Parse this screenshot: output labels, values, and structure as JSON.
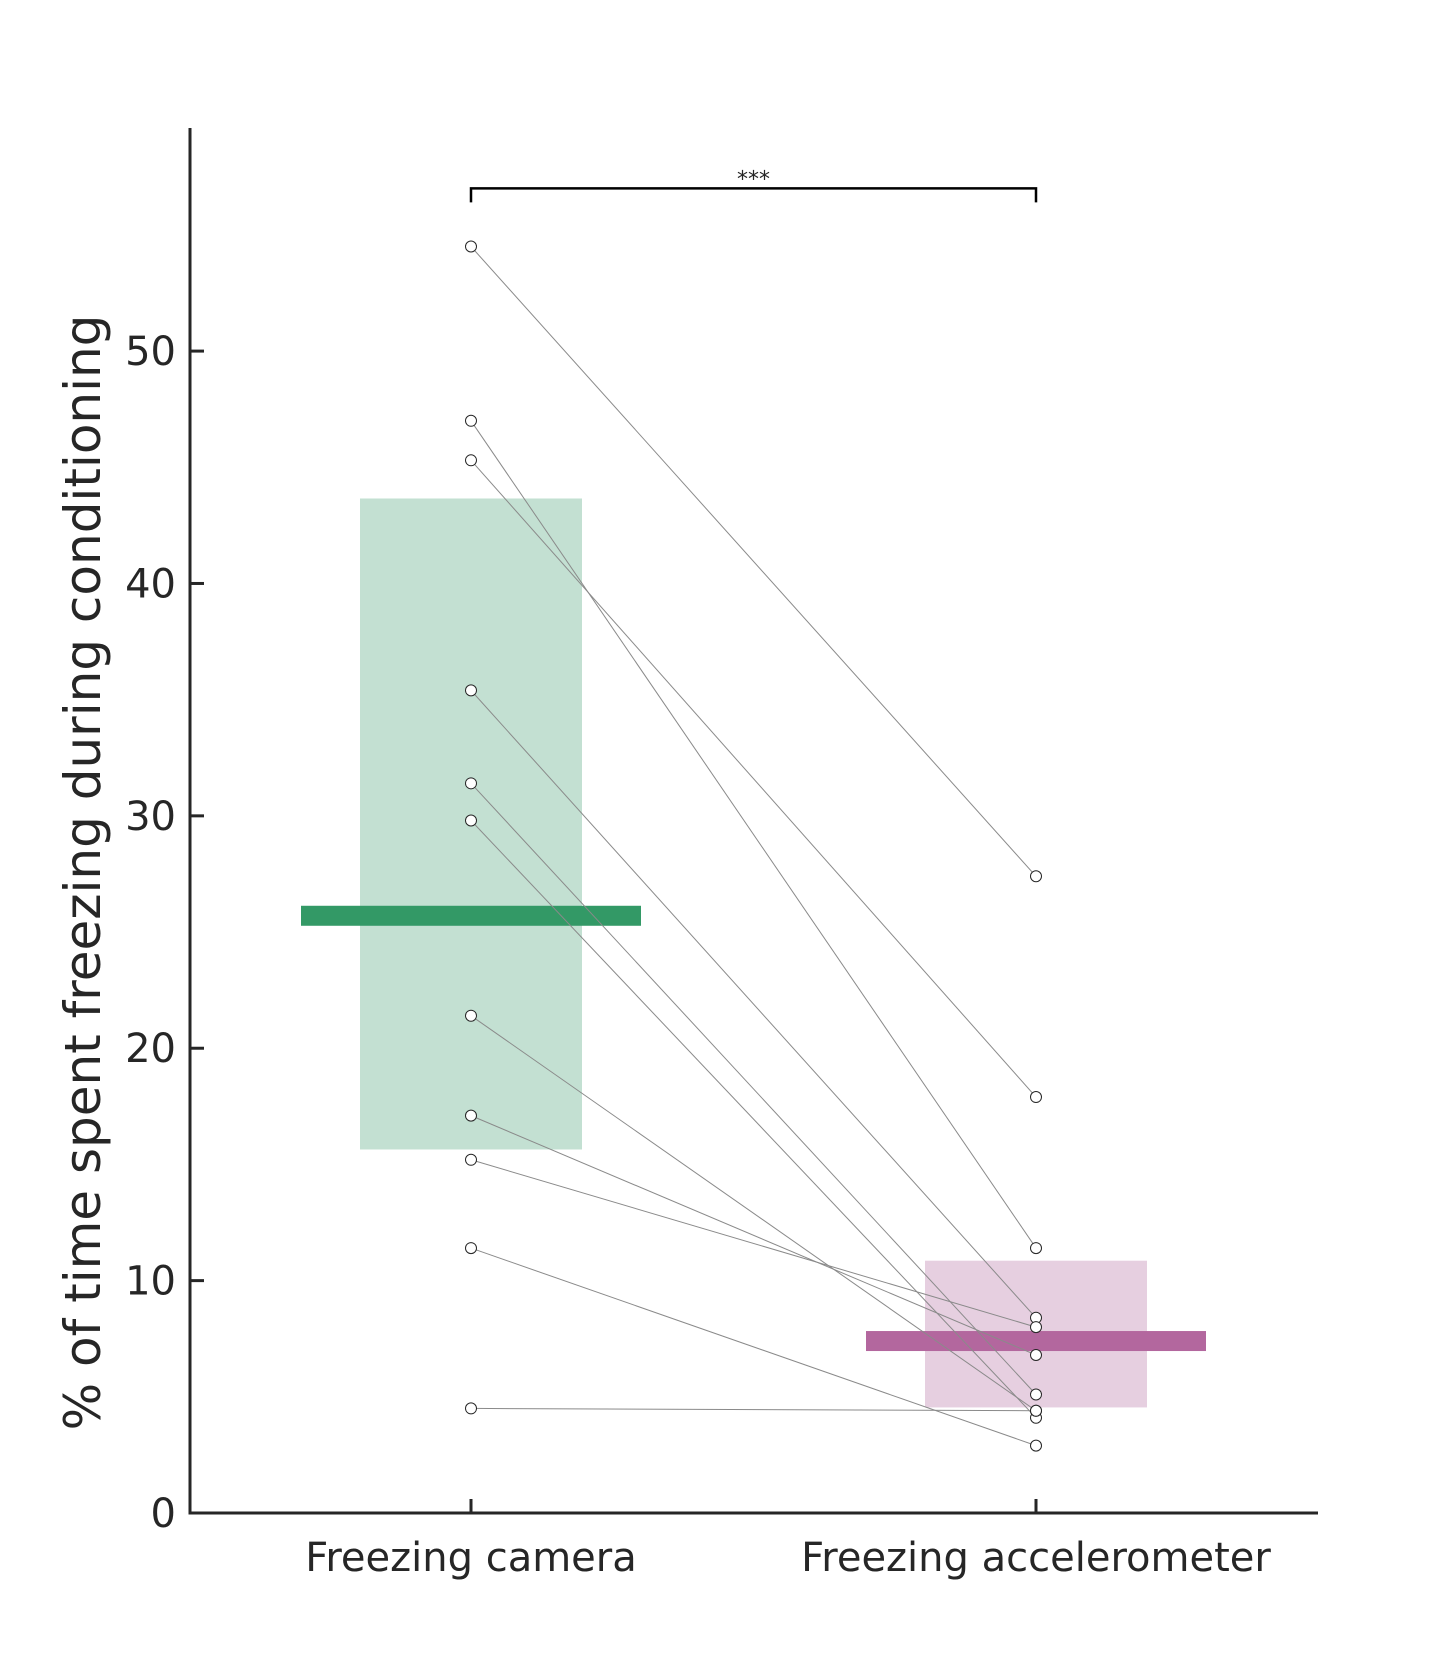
{
  "chart_data": {
    "type": "scatter",
    "xlabel": "",
    "ylabel": "% of time spent freezing during conditioning",
    "ylim": [
      0,
      59.6
    ],
    "yticks": [
      0,
      10,
      20,
      30,
      40,
      50
    ],
    "categories": [
      "Freezing camera",
      "Freezing accelerometer"
    ],
    "grid": false,
    "legend": "none",
    "boxes": [
      {
        "category": "Freezing camera",
        "low": 15.6,
        "high": 43.7,
        "mean": 25.7,
        "fill": "#c3e0d2",
        "mean_color": "#339966"
      },
      {
        "category": "Freezing accelerometer",
        "low": 4.5,
        "high": 10.9,
        "mean": 7.4,
        "fill": "#e6cfe0",
        "mean_color": "#b3679e"
      }
    ],
    "pairs": [
      {
        "camera": 54.5,
        "accelerometer": 27.4
      },
      {
        "camera": 47.0,
        "accelerometer": 11.4
      },
      {
        "camera": 45.3,
        "accelerometer": 17.9
      },
      {
        "camera": 35.4,
        "accelerometer": 8.4
      },
      {
        "camera": 31.4,
        "accelerometer": 5.1
      },
      {
        "camera": 29.8,
        "accelerometer": 4.1
      },
      {
        "camera": 21.4,
        "accelerometer": 4.4
      },
      {
        "camera": 17.1,
        "accelerometer": 6.8
      },
      {
        "camera": 15.2,
        "accelerometer": 8.0
      },
      {
        "camera": 11.4,
        "accelerometer": 2.9
      },
      {
        "camera": 4.5,
        "accelerometer": 4.4
      }
    ],
    "significance": {
      "label": "***",
      "y": 57.0
    }
  }
}
